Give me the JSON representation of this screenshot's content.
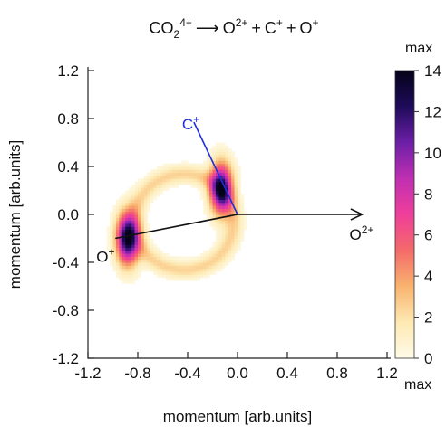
{
  "chart_data": {
    "type": "heatmap",
    "title_parts": {
      "lhs_base": "CO",
      "lhs_sub": "2",
      "lhs_sup": "4+",
      "arrow": "⟶",
      "o2": "O",
      "o2_sup": "2+",
      "plus1": "+",
      "c": "C",
      "c_sup": "+",
      "plus2": "+",
      "o": "O",
      "o_sup": "+"
    },
    "xlabel": "momentum [arb.units]",
    "ylabel": "momentum [arb.units]",
    "xlim": [
      -1.2,
      1.2
    ],
    "ylim": [
      -1.2,
      1.2
    ],
    "x_ticks": [
      "-1.2",
      "-0.8",
      "-0.4",
      "0.0",
      "0.4",
      "0.8",
      "1.2"
    ],
    "y_ticks": [
      "1.2",
      "0.8",
      "0.4",
      "0.0",
      "-0.4",
      "-0.8",
      "-1.2"
    ],
    "grid": false,
    "colorbar": {
      "range": [
        0,
        14
      ],
      "ticks": [
        "0",
        "2",
        "4",
        "6",
        "8",
        "10",
        "12",
        "14"
      ],
      "top_label": "max",
      "bottom_label": "max",
      "colors": [
        "#fffbe8",
        "#fde9b2",
        "#f9b36e",
        "#f46a6a",
        "#ef3f9a",
        "#c02fb2",
        "#6d1fa8",
        "#1e0b5a",
        "#050318"
      ]
    },
    "distributions": {
      "ring": {
        "center": [
          -0.43,
          -0.06
        ],
        "radius": 0.4,
        "peak": 2.5
      },
      "o_plus_spot": {
        "center": [
          -0.88,
          -0.2
        ],
        "sigma": [
          0.06,
          0.14
        ],
        "peak": 14
      },
      "c_plus_spot": {
        "center": [
          -0.13,
          0.22
        ],
        "sigma": [
          0.06,
          0.14
        ],
        "peak": 13
      }
    },
    "vectors": [
      {
        "name": "O2+",
        "from": [
          0.0,
          0.0
        ],
        "to": [
          1.0,
          0.0
        ],
        "label": "O",
        "label_sup": "2+",
        "color": "#111111",
        "arrowhead": true
      },
      {
        "name": "C+",
        "from": [
          0.0,
          0.0
        ],
        "to": [
          -0.35,
          0.77
        ],
        "label": "C",
        "label_sup": "+",
        "color": "#1f2fe0",
        "arrowhead": false
      },
      {
        "name": "O+",
        "from": [
          0.0,
          0.0
        ],
        "to": [
          -0.98,
          -0.2
        ],
        "label": "O",
        "label_sup": "+",
        "color": "#111111",
        "arrowhead": false
      }
    ]
  }
}
